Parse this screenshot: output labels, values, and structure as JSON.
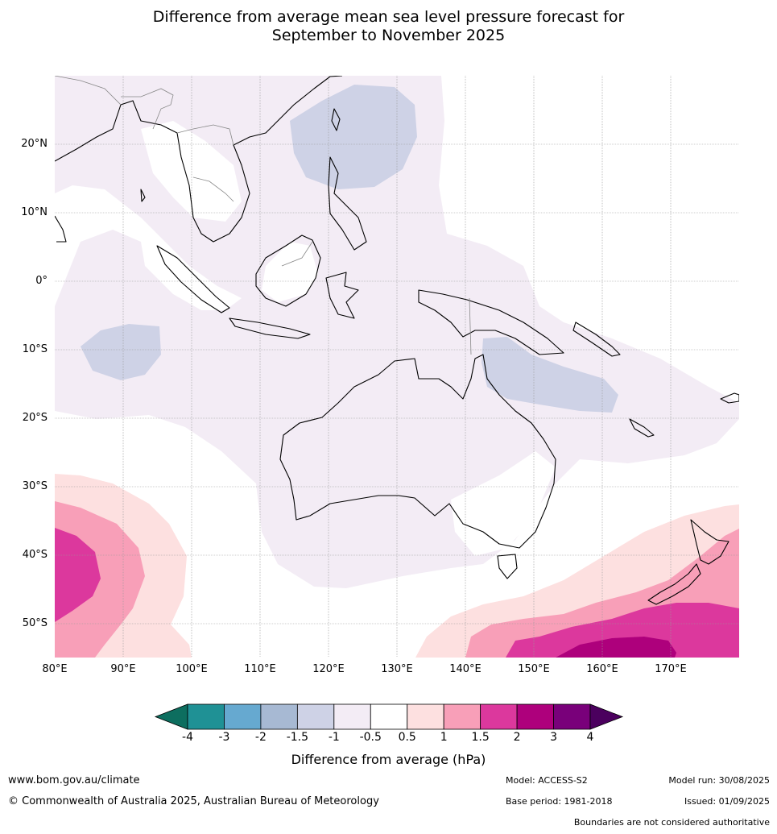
{
  "title_line1": "Difference from average mean sea level pressure forecast for",
  "title_line2": "September to November 2025",
  "lat_labels": [
    "20°N",
    "10°N",
    "0°",
    "10°S",
    "20°S",
    "30°S",
    "40°S",
    "50°S"
  ],
  "lon_labels": [
    "80°E",
    "90°E",
    "100°E",
    "110°E",
    "120°E",
    "130°E",
    "140°E",
    "150°E",
    "160°E",
    "170°E"
  ],
  "legend": {
    "title": "Difference from average (hPa)",
    "ticks": [
      "-4",
      "-3",
      "-2",
      "-1.5",
      "-1",
      "-0.5",
      "0.5",
      "1",
      "1.5",
      "2",
      "3",
      "4"
    ],
    "colors": [
      "#0d6e5f",
      "#1f9195",
      "#66a9d0",
      "#a7b9d3",
      "#ced2e6",
      "#f3ecf5",
      "#ffffff",
      "#fde0e0",
      "#f89fb8",
      "#dc389d",
      "#ae007c",
      "#79007a",
      "#4b005e"
    ]
  },
  "footer": {
    "website": "www.bom.gov.au/climate",
    "copyright": "© Commonwealth of Australia 2025, Australian Bureau of Meteorology",
    "model": "Model: ACCESS-S2",
    "base_period": "Base period: 1981-2018",
    "model_run": "Model run: 30/08/2025",
    "issued": "Issued: 01/09/2025",
    "boundaries_note": "Boundaries are not considered authoritative"
  }
}
